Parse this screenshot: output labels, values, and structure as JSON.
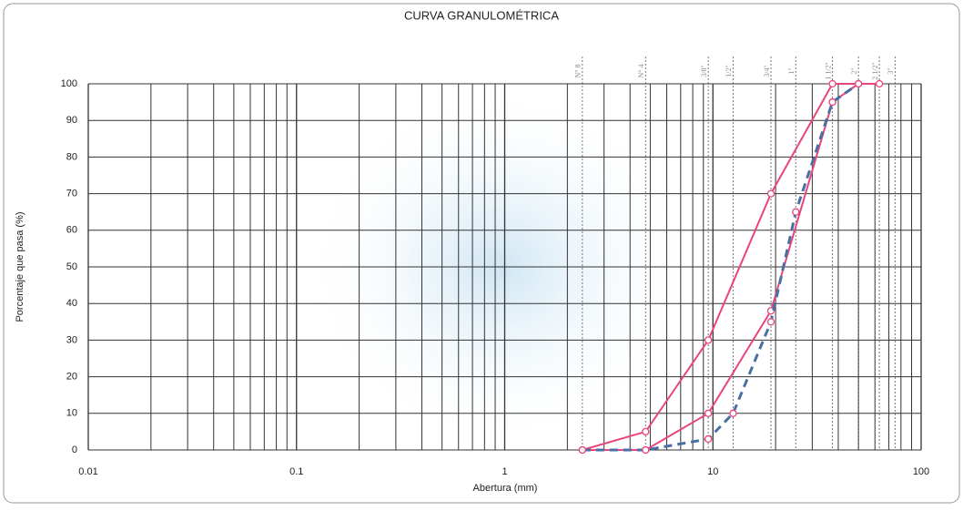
{
  "chart_data": {
    "type": "line",
    "title": "CURVA GRANULOMÉTRICA",
    "x_label": "Abertura (mm)",
    "y_label": "Porcentaje que pasa (%)",
    "log_x": true,
    "grid": true,
    "xlim": [
      0.01,
      100
    ],
    "xticks": [
      0.01,
      0.1,
      1,
      10,
      100
    ],
    "ylim": [
      0,
      100
    ],
    "yticks": [
      0,
      10,
      20,
      30,
      40,
      50,
      60,
      70,
      80,
      90,
      100
    ],
    "sieves": {
      "labels": [
        "N° 8",
        "N° 4",
        "3/8\"",
        "1/2\"",
        "3/4\"",
        "1\"",
        "1 1/2\"",
        "2\"",
        "2 1/2\"",
        "3\""
      ],
      "x": [
        2.36,
        4.75,
        9.5,
        12.5,
        19,
        25,
        37.5,
        50,
        63,
        75
      ]
    },
    "series": [
      {
        "color": "#e8457a",
        "dash": false,
        "x": [
          2.36,
          4.75,
          9.5,
          19,
          37.5,
          63
        ],
        "values": [
          0,
          5,
          30,
          70,
          100,
          100
        ]
      },
      {
        "color": "#e8457a",
        "dash": false,
        "x": [
          2.36,
          4.75,
          9.5,
          19,
          37.5,
          50
        ],
        "values": [
          0,
          0,
          10,
          38,
          95,
          100
        ]
      },
      {
        "color": "#4a6fa5",
        "dash": true,
        "x": [
          2.36,
          4.75,
          9.5,
          12.5,
          19,
          25,
          37.5,
          50
        ],
        "values": [
          0,
          0,
          3,
          10,
          35,
          65,
          95,
          100
        ]
      }
    ]
  }
}
